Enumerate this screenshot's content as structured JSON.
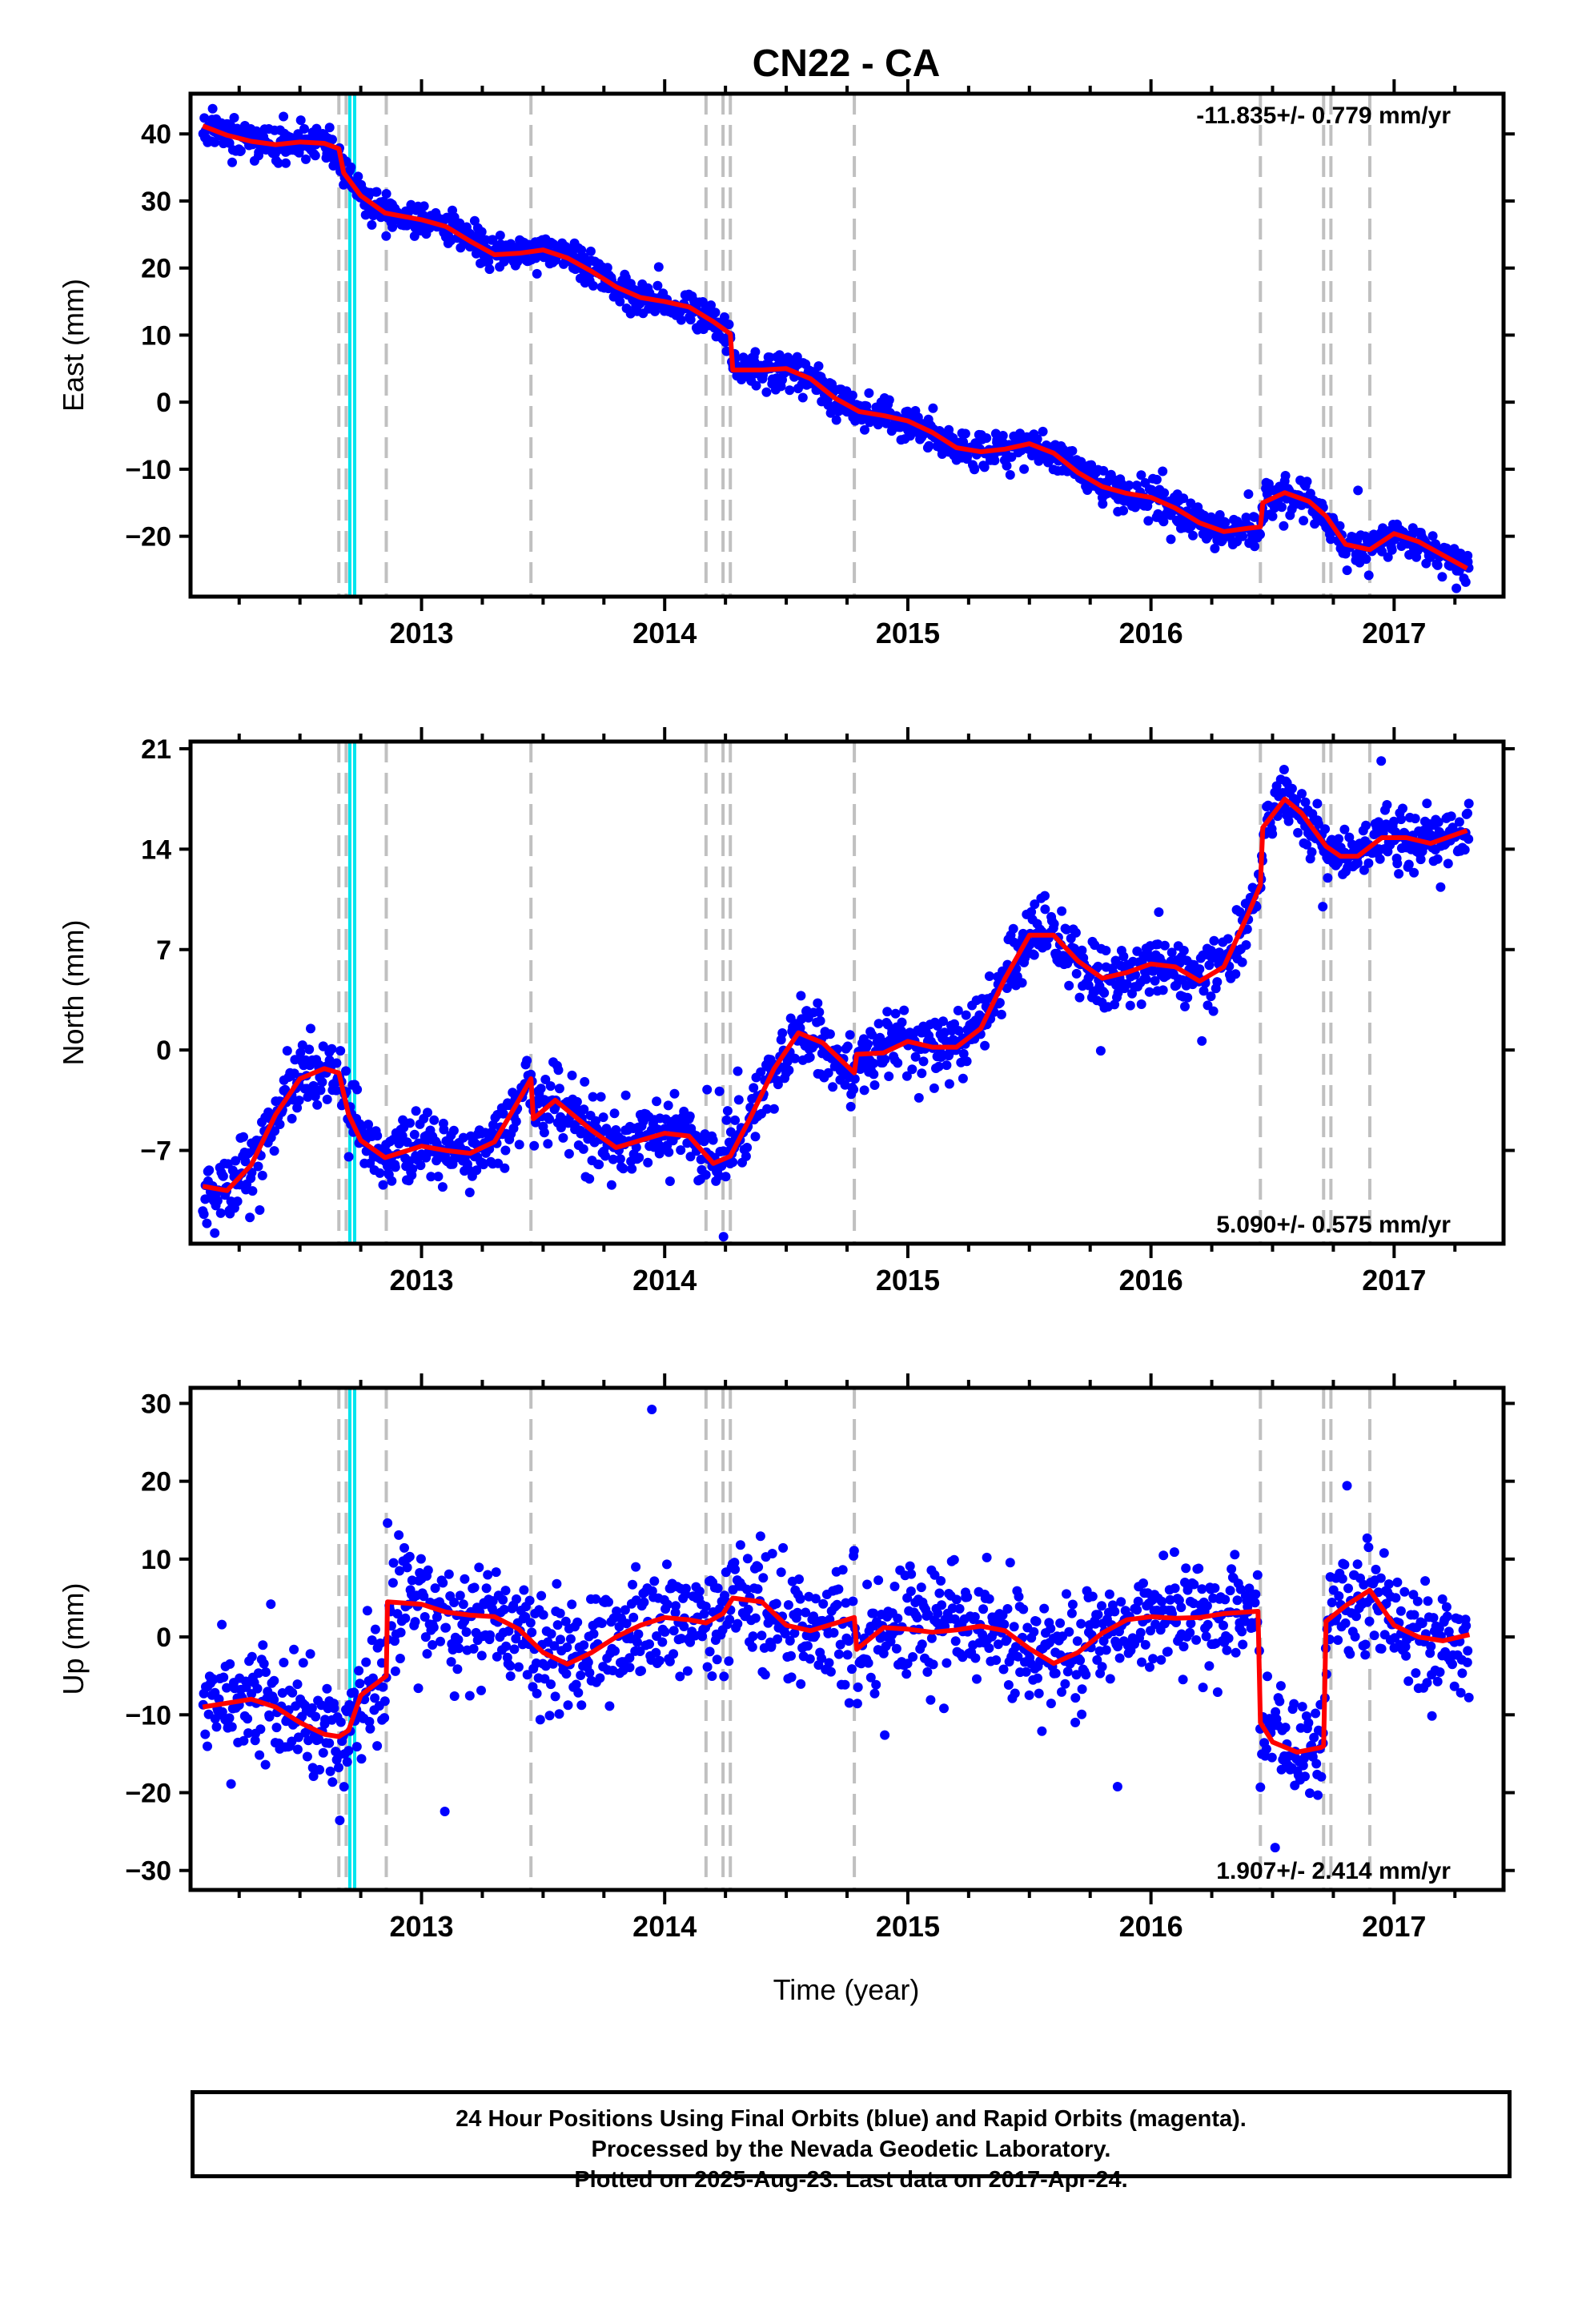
{
  "title": "CN22 - CA",
  "xlabel": "Time (year)",
  "footer": {
    "line1": "24 Hour Positions Using Final Orbits (blue) and Rapid Orbits (magenta).",
    "line2": "Processed by the Nevada Geodetic Laboratory.",
    "line3": "Plotted on 2025-Aug-23. Last data on 2017-Apr-24."
  },
  "colors": {
    "points": "#0000ff",
    "model": "#ff0000",
    "step_gray": "#c0c0c0",
    "step_cyan": "#00e5ee",
    "frame": "#000000"
  },
  "steps": {
    "gray": [
      2012.66,
      2012.69,
      2012.855,
      2013.45,
      2014.17,
      2014.24,
      2014.27,
      2014.78,
      2016.45,
      2016.71,
      2016.74,
      2016.9
    ],
    "cyan": [
      2012.705,
      2012.725
    ]
  },
  "chart_data": [
    {
      "type": "scatter",
      "ylabel": "East (mm)",
      "rate_text": "-11.835+/- 0.779 mm/yr",
      "rate_position": "top-right",
      "xlim": [
        2012.05,
        2017.45
      ],
      "ylim": [
        -29,
        46
      ],
      "yticks": [
        40,
        30,
        20,
        10,
        0,
        -10,
        -20
      ],
      "ytick_labels": [
        "40",
        "30",
        "20",
        "10",
        "0",
        "−10",
        "−20"
      ],
      "xticks": [
        2013,
        2014,
        2015,
        2016,
        2017
      ],
      "xtick_labels": [
        "2013",
        "2014",
        "2015",
        "2016",
        "2017"
      ],
      "x_range_data": [
        2012.1,
        2017.31
      ],
      "model": {
        "x": [
          2012.1,
          2012.2,
          2012.3,
          2012.4,
          2012.5,
          2012.6,
          2012.66,
          2012.68,
          2012.75,
          2012.85,
          2013.0,
          2013.1,
          2013.2,
          2013.3,
          2013.4,
          2013.5,
          2013.6,
          2013.7,
          2013.8,
          2013.9,
          2014.0,
          2014.1,
          2014.2,
          2014.27,
          2014.28,
          2014.4,
          2014.5,
          2014.6,
          2014.7,
          2014.8,
          2014.9,
          2015.0,
          2015.1,
          2015.2,
          2015.3,
          2015.4,
          2015.5,
          2015.6,
          2015.7,
          2015.8,
          2015.9,
          2016.0,
          2016.1,
          2016.2,
          2016.3,
          2016.4,
          2016.45,
          2016.46,
          2016.55,
          2016.65,
          2016.72,
          2016.8,
          2016.9,
          2017.0,
          2017.1,
          2017.2,
          2017.3
        ],
        "y": [
          41.2,
          39.8,
          38.9,
          38.4,
          38.8,
          38.6,
          37.8,
          34.2,
          30.8,
          28.2,
          27.2,
          26.2,
          24.0,
          22.0,
          22.2,
          22.7,
          21.5,
          19.5,
          17.2,
          15.6,
          15.0,
          14.2,
          12.0,
          10.2,
          4.8,
          4.8,
          5.0,
          3.5,
          0.6,
          -1.4,
          -2.0,
          -2.8,
          -4.5,
          -6.8,
          -7.4,
          -7.0,
          -6.2,
          -7.6,
          -10.5,
          -12.6,
          -13.6,
          -14.2,
          -15.8,
          -18.0,
          -19.3,
          -18.8,
          -18.6,
          -15.0,
          -13.5,
          -14.8,
          -17.0,
          -21.2,
          -22.0,
          -19.6,
          -20.8,
          -22.8,
          -24.8
        ]
      },
      "scatter": {
        "n": 1450,
        "sd": 1.3,
        "seed": 11
      }
    },
    {
      "type": "scatter",
      "ylabel": "North (mm)",
      "rate_text": "5.090+/- 0.575 mm/yr",
      "rate_position": "bottom-right",
      "xlim": [
        2012.05,
        2017.45
      ],
      "ylim": [
        -13.5,
        21.5
      ],
      "yticks": [
        21,
        14,
        7,
        0,
        -7
      ],
      "ytick_labels": [
        "21",
        "14",
        "7",
        "0",
        "−7"
      ],
      "xticks": [
        2013,
        2014,
        2015,
        2016,
        2017
      ],
      "xtick_labels": [
        "2013",
        "2014",
        "2015",
        "2016",
        "2017"
      ],
      "x_range_data": [
        2012.1,
        2017.31
      ],
      "model": {
        "x": [
          2012.1,
          2012.2,
          2012.3,
          2012.4,
          2012.5,
          2012.6,
          2012.66,
          2012.7,
          2012.75,
          2012.85,
          2013.0,
          2013.1,
          2013.2,
          2013.3,
          2013.4,
          2013.45,
          2013.46,
          2013.55,
          2013.7,
          2013.8,
          2013.9,
          2014.0,
          2014.1,
          2014.2,
          2014.27,
          2014.35,
          2014.45,
          2014.55,
          2014.65,
          2014.78,
          2014.79,
          2014.9,
          2015.0,
          2015.1,
          2015.2,
          2015.3,
          2015.4,
          2015.5,
          2015.6,
          2015.7,
          2015.8,
          2015.9,
          2016.0,
          2016.1,
          2016.2,
          2016.3,
          2016.4,
          2016.45,
          2016.46,
          2016.55,
          2016.62,
          2016.72,
          2016.78,
          2016.85,
          2016.95,
          2017.05,
          2017.15,
          2017.3
        ],
        "y": [
          -9.5,
          -9.8,
          -8.0,
          -4.5,
          -2.0,
          -1.3,
          -1.6,
          -4.5,
          -6.3,
          -7.5,
          -6.7,
          -7.0,
          -7.2,
          -6.4,
          -3.5,
          -2.0,
          -4.8,
          -3.5,
          -5.6,
          -6.8,
          -6.3,
          -5.8,
          -6.0,
          -7.9,
          -7.4,
          -4.8,
          -1.3,
          1.2,
          0.5,
          -1.6,
          -0.3,
          -0.2,
          0.6,
          0.2,
          0.2,
          1.5,
          5.0,
          8.0,
          8.0,
          6.2,
          5.0,
          5.4,
          6.0,
          5.8,
          4.8,
          5.8,
          9.5,
          11.5,
          15.5,
          17.5,
          16.5,
          14.2,
          13.5,
          13.5,
          14.8,
          14.8,
          14.4,
          15.3
        ]
      },
      "scatter": {
        "n": 1450,
        "sd": 1.1,
        "seed": 23
      }
    },
    {
      "type": "scatter",
      "ylabel": "Up (mm)",
      "rate_text": "1.907+/- 2.414 mm/yr",
      "rate_position": "bottom-right",
      "xlim": [
        2012.05,
        2017.45
      ],
      "ylim": [
        -32.5,
        32
      ],
      "yticks": [
        30,
        20,
        10,
        0,
        -10,
        -20,
        -30
      ],
      "ytick_labels": [
        "30",
        "20",
        "10",
        "0",
        "−10",
        "−20",
        "−30"
      ],
      "xticks": [
        2013,
        2014,
        2015,
        2016,
        2017
      ],
      "xtick_labels": [
        "2013",
        "2014",
        "2015",
        "2016",
        "2017"
      ],
      "x_range_data": [
        2012.1,
        2017.31
      ],
      "model": {
        "x": [
          2012.1,
          2012.2,
          2012.3,
          2012.4,
          2012.5,
          2012.6,
          2012.66,
          2012.7,
          2012.75,
          2012.855,
          2012.86,
          2013.0,
          2013.1,
          2013.2,
          2013.3,
          2013.4,
          2013.5,
          2013.6,
          2013.7,
          2013.8,
          2013.9,
          2014.0,
          2014.1,
          2014.17,
          2014.24,
          2014.28,
          2014.4,
          2014.5,
          2014.6,
          2014.78,
          2014.79,
          2014.9,
          2015.0,
          2015.1,
          2015.2,
          2015.3,
          2015.4,
          2015.5,
          2015.6,
          2015.7,
          2015.8,
          2015.9,
          2016.0,
          2016.1,
          2016.2,
          2016.3,
          2016.44,
          2016.45,
          2016.5,
          2016.6,
          2016.7,
          2016.71,
          2016.72,
          2016.8,
          2016.9,
          2017.0,
          2017.1,
          2017.2,
          2017.31
        ],
        "y": [
          -9.0,
          -8.5,
          -8.0,
          -9.0,
          -11.0,
          -12.5,
          -12.8,
          -12.0,
          -7.5,
          -5.0,
          4.5,
          4.2,
          3.2,
          2.8,
          2.6,
          1.0,
          -2.0,
          -3.5,
          -2.0,
          0.0,
          1.5,
          2.5,
          2.2,
          1.8,
          3.0,
          5.0,
          4.5,
          1.5,
          0.8,
          2.5,
          -1.6,
          1.2,
          1.0,
          0.6,
          0.9,
          1.4,
          0.8,
          -1.5,
          -3.4,
          -2.0,
          0.5,
          2.2,
          2.6,
          2.4,
          2.5,
          3.0,
          3.3,
          -11.0,
          -13.5,
          -14.8,
          -14.2,
          -14.0,
          2.0,
          4.0,
          6.0,
          1.5,
          0.0,
          -0.5,
          0.3
        ]
      },
      "scatter": {
        "n": 1350,
        "sd": 3.7,
        "seed": 37
      }
    }
  ]
}
